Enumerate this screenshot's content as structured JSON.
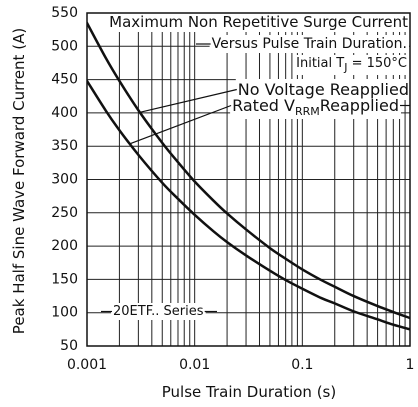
{
  "chart_data": {
    "type": "line",
    "title": "Maximum Non Repetitive Surge Current",
    "subtitle": "Versus Pulse Train Duration.",
    "condition": {
      "text": "Initial T",
      "sub": "J",
      "tail": " = 150°C"
    },
    "part_label": "20ETF.. Series",
    "xlabel": "Pulse Train Duration (s)",
    "ylabel": "Peak Half Sine Wave Forward Current (A)",
    "xscale": "log",
    "xlim": [
      0.001,
      1
    ],
    "ylim": [
      50,
      550
    ],
    "x_ticks": [
      "0.001",
      "0.01",
      "0.1",
      "1"
    ],
    "y_ticks": [
      "50",
      "100",
      "150",
      "200",
      "250",
      "300",
      "350",
      "400",
      "450",
      "500",
      "550"
    ],
    "grid": true,
    "legend_position": "top-right",
    "series": [
      {
        "name": "No Voltage Reapplied",
        "x": [
          0.001,
          0.0015,
          0.002,
          0.003,
          0.005,
          0.007,
          0.01,
          0.015,
          0.02,
          0.03,
          0.05,
          0.07,
          0.1,
          0.15,
          0.2,
          0.3,
          0.5,
          0.7,
          1
        ],
        "y": [
          535,
          482,
          448,
          404,
          355,
          326,
          297,
          268,
          249,
          225,
          197,
          181,
          165,
          149,
          139,
          125,
          110,
          101,
          92
        ]
      },
      {
        "name": "Rated V",
        "name_sub": "RRM",
        "name_tail": "Reapplied",
        "x": [
          0.001,
          0.0015,
          0.002,
          0.003,
          0.005,
          0.007,
          0.01,
          0.015,
          0.02,
          0.03,
          0.05,
          0.07,
          0.1,
          0.15,
          0.2,
          0.3,
          0.5,
          0.7,
          1
        ],
        "y": [
          448,
          403,
          374,
          337,
          295,
          271,
          247,
          222,
          206,
          186,
          163,
          149,
          136,
          122,
          114,
          102,
          90,
          82,
          75
        ]
      }
    ]
  },
  "colors": {
    "line": "#111111",
    "grid": "#222222",
    "background": "#ffffff"
  }
}
